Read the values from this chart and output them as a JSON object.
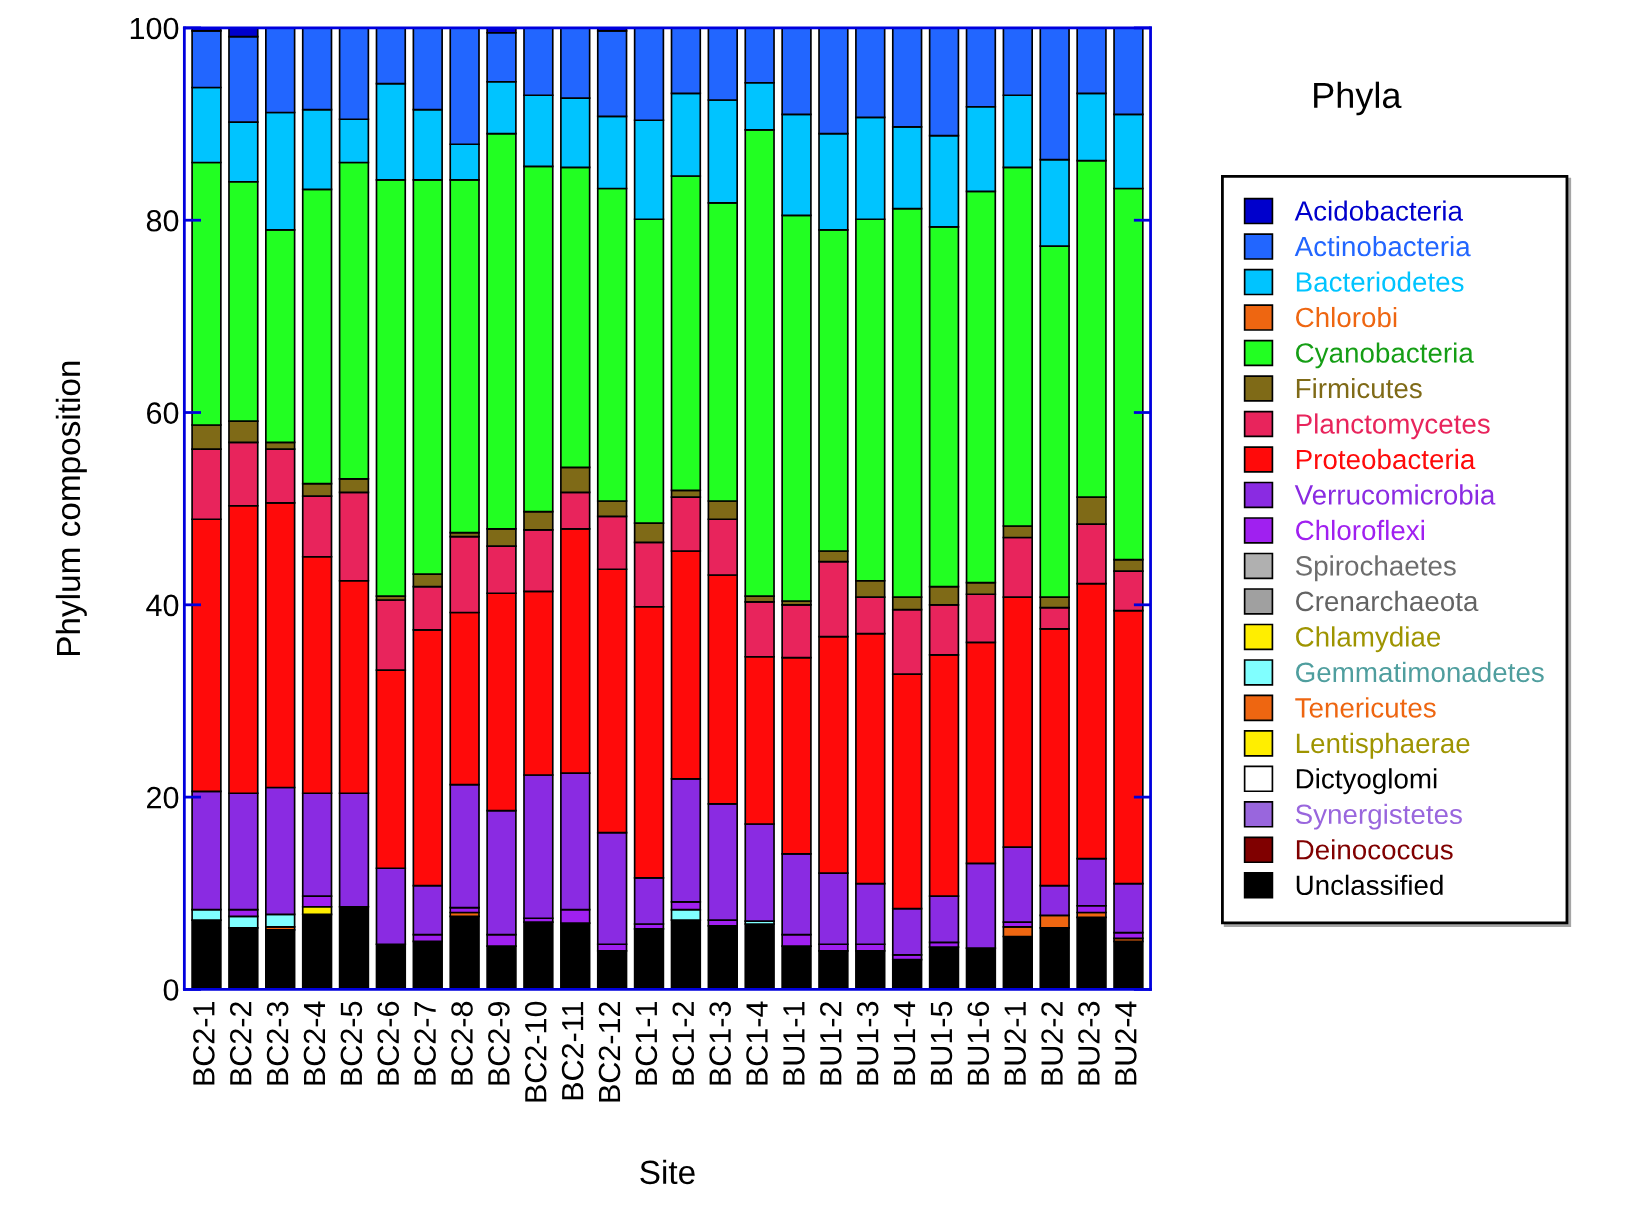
{
  "chart_data": {
    "type": "bar",
    "stacked": true,
    "xlabel": "Site",
    "ylabel": "Phylum composition",
    "legend_title": "Phyla",
    "legend": "right",
    "categories": [
      "BC2-1",
      "BC2-2",
      "BC2-3",
      "BC2-4",
      "BC2-5",
      "BC2-6",
      "BC2-7",
      "BC2-8",
      "BC2-9",
      "BC2-10",
      "BC2-11",
      "BC2-12",
      "BC1-1",
      "BC1-2",
      "BC1-3",
      "BC1-4",
      "BU1-1",
      "BU1-2",
      "BU1-3",
      "BU1-4",
      "BU1-5",
      "BU1-6",
      "BU2-1",
      "BU2-2",
      "BU2-3",
      "BU2-4"
    ],
    "ylim": [
      0,
      100
    ],
    "yticks": [
      0,
      20,
      40,
      60,
      80,
      100
    ],
    "grid": false,
    "series": [
      {
        "name": "Unclassified",
        "color": "#000000",
        "values": [
          7.2,
          6.4,
          6.2,
          7.8,
          8.6,
          4.7,
          5.0,
          7.6,
          4.5,
          7.0,
          6.9,
          4.0,
          6.3,
          7.2,
          6.6,
          6.8,
          4.5,
          4.0,
          4.0,
          3.1,
          4.4,
          4.3,
          5.5,
          6.4,
          7.5,
          5.0
        ]
      },
      {
        "name": "Deinococcus",
        "color": "#800000",
        "values": [
          0,
          0,
          0,
          0,
          0,
          0,
          0,
          0,
          0,
          0,
          0,
          0,
          0,
          0,
          0,
          0,
          0,
          0,
          0,
          0,
          0,
          0,
          0,
          0,
          0,
          0
        ]
      },
      {
        "name": "Synergistetes",
        "color": "#9966dd",
        "values": [
          0,
          0,
          0,
          0,
          0,
          0,
          0,
          0,
          0,
          0,
          0,
          0,
          0,
          0,
          0,
          0,
          0,
          0,
          0,
          0,
          0,
          0,
          0,
          0,
          0,
          0
        ]
      },
      {
        "name": "Dictyoglomi",
        "color": "#ffffff",
        "values": [
          0,
          0,
          0,
          0,
          0,
          0,
          0,
          0,
          0,
          0,
          0,
          0,
          0,
          0,
          0,
          0,
          0,
          0,
          0,
          0,
          0,
          0,
          0,
          0,
          0,
          0
        ]
      },
      {
        "name": "Lentisphaerae",
        "color": "#ffee00",
        "values": [
          0,
          0,
          0,
          0,
          0,
          0,
          0,
          0,
          0,
          0,
          0,
          0,
          0,
          0,
          0,
          0,
          0,
          0,
          0,
          0,
          0,
          0,
          0,
          0,
          0,
          0
        ]
      },
      {
        "name": "Tenericutes",
        "color": "#ee6611",
        "values": [
          0,
          0,
          0.3,
          0,
          0,
          0,
          0,
          0.4,
          0,
          0,
          0,
          0,
          0,
          0,
          0,
          0,
          0,
          0,
          0,
          0,
          0,
          0,
          1.0,
          1.3,
          0.5,
          0.3
        ]
      },
      {
        "name": "Gemmatimonadetes",
        "color": "#80ffff",
        "values": [
          1.1,
          1.2,
          1.3,
          0,
          0,
          0,
          0,
          0,
          0,
          0,
          0,
          0,
          0,
          1.1,
          0,
          0.3,
          0,
          0,
          0,
          0,
          0,
          0,
          0,
          0,
          0,
          0
        ]
      },
      {
        "name": "Chlamydiae",
        "color": "#ffee00",
        "values": [
          0,
          0,
          0,
          0.8,
          0,
          0,
          0,
          0,
          0,
          0,
          0,
          0,
          0,
          0,
          0,
          0,
          0,
          0,
          0,
          0,
          0,
          0,
          0,
          0,
          0,
          0
        ]
      },
      {
        "name": "Crenarchaeota",
        "color": "#a0a0a0",
        "values": [
          0,
          0,
          0,
          0,
          0,
          0,
          0,
          0,
          0,
          0,
          0,
          0,
          0,
          0,
          0,
          0,
          0,
          0,
          0,
          0,
          0,
          0,
          0,
          0,
          0,
          0
        ]
      },
      {
        "name": "Spirochaetes",
        "color": "#b0b0b0",
        "values": [
          0,
          0,
          0,
          0,
          0,
          0,
          0,
          0,
          0,
          0,
          0,
          0,
          0,
          0,
          0,
          0,
          0,
          0,
          0,
          0,
          0,
          0,
          0,
          0,
          0,
          0
        ]
      },
      {
        "name": "Chloroflexi",
        "color": "#a020f0",
        "values": [
          0,
          0.7,
          0,
          1.1,
          0,
          0,
          0.7,
          0.5,
          1.2,
          0.4,
          1.4,
          0.7,
          0.5,
          0.8,
          0.6,
          0,
          1.2,
          0.7,
          0.7,
          0.5,
          0.5,
          0,
          0.5,
          0,
          0.7,
          0.6
        ]
      },
      {
        "name": "Verrucomicrobia",
        "color": "#8a2be2",
        "values": [
          12.3,
          12.1,
          13.2,
          10.7,
          11.8,
          7.9,
          5.1,
          12.8,
          12.9,
          14.9,
          14.2,
          11.6,
          4.8,
          12.8,
          12.1,
          10.1,
          8.4,
          7.4,
          6.3,
          4.8,
          4.8,
          8.8,
          7.8,
          3.1,
          4.9,
          5.1
        ]
      },
      {
        "name": "Proteobacteria",
        "color": "#ff0a0a",
        "values": [
          28.3,
          29.9,
          29.6,
          24.6,
          22.1,
          20.6,
          26.6,
          17.9,
          22.6,
          19.1,
          25.4,
          27.4,
          28.2,
          23.7,
          23.8,
          17.4,
          20.4,
          24.6,
          26.0,
          24.4,
          25.1,
          23.0,
          26.0,
          26.7,
          28.6,
          28.4
        ]
      },
      {
        "name": "Planctomycetes",
        "color": "#e8245c",
        "values": [
          7.3,
          6.6,
          5.6,
          6.3,
          9.2,
          7.3,
          4.5,
          7.9,
          4.9,
          6.4,
          3.8,
          5.5,
          6.7,
          5.6,
          5.8,
          5.7,
          5.5,
          7.8,
          3.8,
          6.7,
          5.2,
          5.0,
          6.2,
          2.2,
          6.2,
          4.1
        ]
      },
      {
        "name": "Firmicutes",
        "color": "#7f6a17",
        "values": [
          2.5,
          2.2,
          0.7,
          1.3,
          1.4,
          0.4,
          1.3,
          0.4,
          1.8,
          1.9,
          2.6,
          1.6,
          2.0,
          0.7,
          1.9,
          0.6,
          0.4,
          1.1,
          1.7,
          1.3,
          1.9,
          1.2,
          1.2,
          1.1,
          2.8,
          1.2
        ]
      },
      {
        "name": "Cyanobacteria",
        "color": "#22ff22",
        "values": [
          27.3,
          24.9,
          22.1,
          30.6,
          32.9,
          43.3,
          41.0,
          36.7,
          41.1,
          35.9,
          31.2,
          32.5,
          31.6,
          32.7,
          31.0,
          48.5,
          40.1,
          33.4,
          37.6,
          40.4,
          37.4,
          40.7,
          37.3,
          36.5,
          35.0,
          38.6
        ]
      },
      {
        "name": "Chlorobi",
        "color": "#ee6611",
        "values": [
          0,
          0,
          0,
          0,
          0,
          0,
          0,
          0,
          0,
          0,
          0,
          0,
          0,
          0,
          0,
          0,
          0,
          0,
          0,
          0,
          0,
          0,
          0,
          0,
          0,
          0
        ]
      },
      {
        "name": "Bacteriodetes",
        "color": "#00c4ff",
        "values": [
          7.8,
          6.2,
          12.2,
          8.3,
          4.5,
          10.0,
          7.3,
          3.7,
          5.4,
          7.4,
          7.2,
          7.5,
          10.3,
          8.6,
          10.7,
          4.9,
          10.5,
          10.0,
          10.6,
          8.5,
          9.5,
          8.8,
          7.5,
          9.0,
          7.0,
          7.7
        ]
      },
      {
        "name": "Actinobacteria",
        "color": "#2266ff",
        "values": [
          5.9,
          8.9,
          8.8,
          8.5,
          9.5,
          5.8,
          8.5,
          12.1,
          5.1,
          7.0,
          7.3,
          8.9,
          9.6,
          6.8,
          7.5,
          5.8,
          9.0,
          11.0,
          9.3,
          10.3,
          11.2,
          8.2,
          7.0,
          13.7,
          6.8,
          9.0
        ]
      },
      {
        "name": "Acidobacteria",
        "color": "#0000cc",
        "values": [
          0.3,
          0.9,
          0,
          0,
          0,
          0,
          0,
          0,
          0.5,
          0,
          0,
          0.3,
          0,
          0,
          0,
          0,
          0,
          0,
          0,
          0,
          0,
          0,
          0,
          0,
          0,
          0
        ]
      }
    ]
  }
}
